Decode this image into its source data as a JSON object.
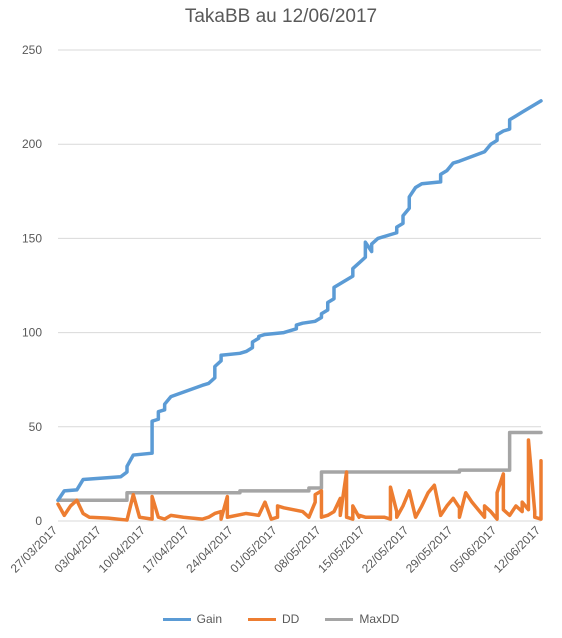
{
  "chart_data": {
    "type": "line",
    "title": "TakaBB au 12/06/2017",
    "xlabel": "",
    "ylabel": "",
    "ylim": [
      0,
      250
    ],
    "xlim": [
      "2017-03-27",
      "2017-06-12"
    ],
    "y_ticks": [
      0,
      50,
      100,
      150,
      200,
      250
    ],
    "x_tick_labels": [
      "27/03/2017",
      "03/04/2017",
      "10/04/2017",
      "17/04/2017",
      "24/04/2017",
      "01/05/2017",
      "08/05/2017",
      "15/05/2017",
      "22/05/2017",
      "29/05/2017",
      "05/06/2017",
      "12/06/2017"
    ],
    "x_tick_dates": [
      "2017-03-27",
      "2017-04-03",
      "2017-04-10",
      "2017-04-17",
      "2017-04-24",
      "2017-05-01",
      "2017-05-08",
      "2017-05-15",
      "2017-05-22",
      "2017-05-29",
      "2017-06-05",
      "2017-06-12"
    ],
    "grid": "horizontal",
    "legend_position": "bottom",
    "series": [
      {
        "name": "Gain",
        "color": "#5B9BD5",
        "points": [
          [
            "2017-03-27",
            11
          ],
          [
            "2017-03-28",
            16
          ],
          [
            "2017-03-30",
            16.5
          ],
          [
            "2017-03-31",
            22
          ],
          [
            "2017-04-06",
            23.5
          ],
          [
            "2017-04-07",
            26
          ],
          [
            "2017-04-07",
            29
          ],
          [
            "2017-04-08",
            35
          ],
          [
            "2017-04-11",
            36
          ],
          [
            "2017-04-11",
            53
          ],
          [
            "2017-04-12",
            54
          ],
          [
            "2017-04-12",
            58
          ],
          [
            "2017-04-13",
            59
          ],
          [
            "2017-04-13",
            62
          ],
          [
            "2017-04-14",
            66
          ],
          [
            "2017-04-19",
            72
          ],
          [
            "2017-04-20",
            73
          ],
          [
            "2017-04-21",
            76
          ],
          [
            "2017-04-21",
            82
          ],
          [
            "2017-04-22",
            85
          ],
          [
            "2017-04-22",
            88
          ],
          [
            "2017-04-25",
            89
          ],
          [
            "2017-04-26",
            90
          ],
          [
            "2017-04-27",
            92
          ],
          [
            "2017-04-27",
            95
          ],
          [
            "2017-04-28",
            97
          ],
          [
            "2017-04-28",
            98
          ],
          [
            "2017-04-29",
            99
          ],
          [
            "2017-05-02",
            100
          ],
          [
            "2017-05-03",
            101
          ],
          [
            "2017-05-04",
            102
          ],
          [
            "2017-05-04",
            104
          ],
          [
            "2017-05-05",
            105
          ],
          [
            "2017-05-07",
            106
          ],
          [
            "2017-05-08",
            108
          ],
          [
            "2017-05-08",
            110
          ],
          [
            "2017-05-09",
            112
          ],
          [
            "2017-05-09",
            116
          ],
          [
            "2017-05-10",
            118
          ],
          [
            "2017-05-10",
            124
          ],
          [
            "2017-05-11",
            126
          ],
          [
            "2017-05-13",
            130
          ],
          [
            "2017-05-13",
            134
          ],
          [
            "2017-05-14",
            137
          ],
          [
            "2017-05-15",
            140
          ],
          [
            "2017-05-15",
            148
          ],
          [
            "2017-05-16",
            143
          ],
          [
            "2017-05-16",
            147
          ],
          [
            "2017-05-17",
            150
          ],
          [
            "2017-05-18",
            151
          ],
          [
            "2017-05-19",
            152
          ],
          [
            "2017-05-20",
            153
          ],
          [
            "2017-05-20",
            156
          ],
          [
            "2017-05-21",
            158
          ],
          [
            "2017-05-21",
            162
          ],
          [
            "2017-05-22",
            166
          ],
          [
            "2017-05-22",
            172
          ],
          [
            "2017-05-23",
            177
          ],
          [
            "2017-05-24",
            179
          ],
          [
            "2017-05-27",
            180
          ],
          [
            "2017-05-27",
            184
          ],
          [
            "2017-05-28",
            186
          ],
          [
            "2017-05-29",
            190
          ],
          [
            "2017-05-30",
            191
          ],
          [
            "2017-06-03",
            196
          ],
          [
            "2017-06-04",
            200
          ],
          [
            "2017-06-05",
            202
          ],
          [
            "2017-06-05",
            205
          ],
          [
            "2017-06-06",
            207
          ],
          [
            "2017-06-07",
            208
          ],
          [
            "2017-06-07",
            213
          ],
          [
            "2017-06-08",
            215
          ],
          [
            "2017-06-09",
            217
          ],
          [
            "2017-06-10",
            219
          ],
          [
            "2017-06-11",
            221
          ],
          [
            "2017-06-12",
            223
          ]
        ]
      },
      {
        "name": "DD",
        "color": "#ED7D31",
        "points": [
          [
            "2017-03-27",
            9
          ],
          [
            "2017-03-28",
            3
          ],
          [
            "2017-03-29",
            8
          ],
          [
            "2017-03-30",
            11
          ],
          [
            "2017-03-31",
            4
          ],
          [
            "2017-04-01",
            2
          ],
          [
            "2017-04-04",
            1.5
          ],
          [
            "2017-04-07",
            0.5
          ],
          [
            "2017-04-08",
            14
          ],
          [
            "2017-04-09",
            2
          ],
          [
            "2017-04-11",
            1
          ],
          [
            "2017-04-11",
            13
          ],
          [
            "2017-04-12",
            2
          ],
          [
            "2017-04-13",
            1
          ],
          [
            "2017-04-14",
            3
          ],
          [
            "2017-04-16",
            2
          ],
          [
            "2017-04-19",
            1
          ],
          [
            "2017-04-20",
            2
          ],
          [
            "2017-04-21",
            4
          ],
          [
            "2017-04-22",
            5
          ],
          [
            "2017-04-22",
            1
          ],
          [
            "2017-04-23",
            13
          ],
          [
            "2017-04-23",
            2
          ],
          [
            "2017-04-26",
            4
          ],
          [
            "2017-04-28",
            3
          ],
          [
            "2017-04-29",
            10
          ],
          [
            "2017-04-30",
            1
          ],
          [
            "2017-05-01",
            2
          ],
          [
            "2017-05-01",
            8
          ],
          [
            "2017-05-02",
            7
          ],
          [
            "2017-05-05",
            5
          ],
          [
            "2017-05-06",
            2
          ],
          [
            "2017-05-07",
            10
          ],
          [
            "2017-05-07",
            14
          ],
          [
            "2017-05-08",
            16
          ],
          [
            "2017-05-08",
            2
          ],
          [
            "2017-05-09",
            3
          ],
          [
            "2017-05-10",
            5
          ],
          [
            "2017-05-11",
            12
          ],
          [
            "2017-05-11",
            3
          ],
          [
            "2017-05-12",
            26
          ],
          [
            "2017-05-12",
            2
          ],
          [
            "2017-05-13",
            1
          ],
          [
            "2017-05-13",
            8
          ],
          [
            "2017-05-14",
            2
          ],
          [
            "2017-05-14",
            3
          ],
          [
            "2017-05-15",
            2
          ],
          [
            "2017-05-18",
            2
          ],
          [
            "2017-05-19",
            1
          ],
          [
            "2017-05-19",
            18
          ],
          [
            "2017-05-20",
            5
          ],
          [
            "2017-05-20",
            2
          ],
          [
            "2017-05-21",
            8
          ],
          [
            "2017-05-22",
            16
          ],
          [
            "2017-05-23",
            2
          ],
          [
            "2017-05-24",
            8
          ],
          [
            "2017-05-25",
            15
          ],
          [
            "2017-05-26",
            19
          ],
          [
            "2017-05-27",
            3
          ],
          [
            "2017-05-28",
            8
          ],
          [
            "2017-05-29",
            12
          ],
          [
            "2017-05-30",
            7
          ],
          [
            "2017-05-30",
            2
          ],
          [
            "2017-05-31",
            15
          ],
          [
            "2017-06-01",
            10
          ],
          [
            "2017-06-02",
            6
          ],
          [
            "2017-06-03",
            2
          ],
          [
            "2017-06-03",
            8
          ],
          [
            "2017-06-04",
            5
          ],
          [
            "2017-06-05",
            1
          ],
          [
            "2017-06-05",
            15
          ],
          [
            "2017-06-06",
            25
          ],
          [
            "2017-06-06",
            6
          ],
          [
            "2017-06-07",
            3
          ],
          [
            "2017-06-08",
            8
          ],
          [
            "2017-06-09",
            5
          ],
          [
            "2017-06-09",
            10
          ],
          [
            "2017-06-10",
            6
          ],
          [
            "2017-06-10",
            43
          ],
          [
            "2017-06-11",
            5
          ],
          [
            "2017-06-11",
            2
          ],
          [
            "2017-06-12",
            1
          ],
          [
            "2017-06-12",
            32
          ]
        ]
      },
      {
        "name": "MaxDD",
        "color": "#A5A5A5",
        "points": [
          [
            "2017-03-27",
            11
          ],
          [
            "2017-04-07",
            11
          ],
          [
            "2017-04-07",
            15
          ],
          [
            "2017-04-25",
            15
          ],
          [
            "2017-04-25",
            16
          ],
          [
            "2017-05-06",
            16
          ],
          [
            "2017-05-06",
            17.5
          ],
          [
            "2017-05-08",
            17.5
          ],
          [
            "2017-05-08",
            26
          ],
          [
            "2017-05-30",
            26
          ],
          [
            "2017-05-30",
            27
          ],
          [
            "2017-06-07",
            27
          ],
          [
            "2017-06-07",
            47
          ],
          [
            "2017-06-12",
            47
          ]
        ]
      }
    ]
  }
}
